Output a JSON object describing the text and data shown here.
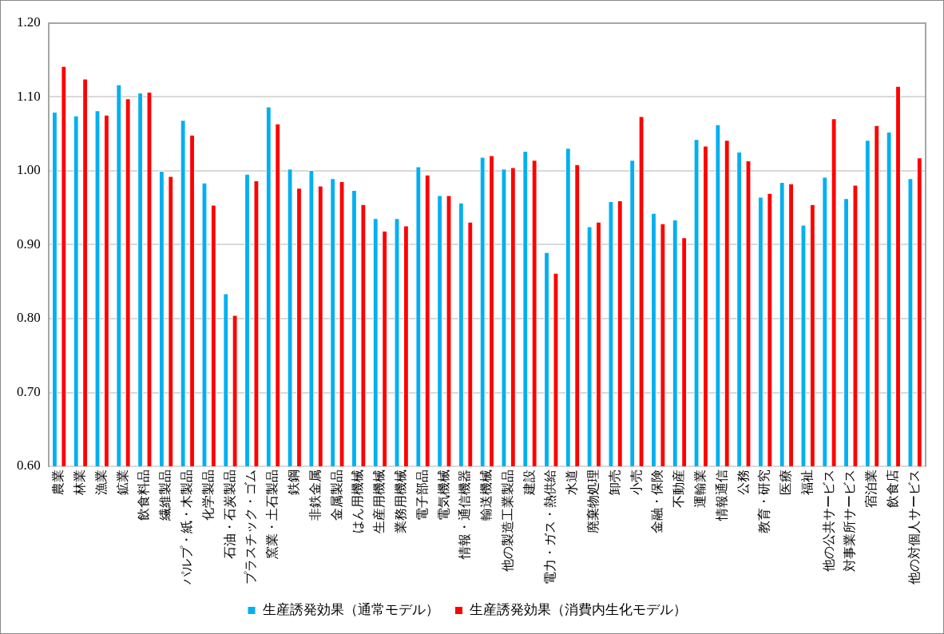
{
  "chart_data": {
    "type": "bar",
    "categories": [
      "農業",
      "林業",
      "漁業",
      "鉱業",
      "飲食料品",
      "繊維製品",
      "パルプ・紙・木製品",
      "化学製品",
      "石油・石炭製品",
      "プラスチック・ゴム",
      "窯業・土石製品",
      "鉄鋼",
      "非鉄金属",
      "金属製品",
      "はん用機械",
      "生産用機械",
      "業務用機械",
      "電子部品",
      "電気機械",
      "情報・通信機器",
      "輸送機械",
      "他の製造工業製品",
      "建設",
      "電力・ガス・熱供給",
      "水道",
      "廃棄物処理",
      "卸売",
      "小売",
      "金融・保険",
      "不動産",
      "運輸業",
      "情報通信",
      "公務",
      "教育・研究",
      "医療",
      "福祉",
      "他の公共サービス",
      "対事業所サービス",
      "宿泊業",
      "飲食店",
      "他の対個人サービス"
    ],
    "series": [
      {
        "name": "生産誘発効果（通常モデル）",
        "color": "#00b0f0",
        "values": [
          1.08,
          1.075,
          1.082,
          1.117,
          1.106,
          1.0,
          1.069,
          0.984,
          0.834,
          0.996,
          1.087,
          1.003,
          1.001,
          0.99,
          0.974,
          0.936,
          0.936,
          1.006,
          0.967,
          0.957,
          1.019,
          1.003,
          1.027,
          0.89,
          1.031,
          0.925,
          0.959,
          1.015,
          0.943,
          0.934,
          1.043,
          1.063,
          1.026,
          0.965,
          0.985,
          0.927,
          0.992,
          0.963,
          1.042,
          1.053,
          0.99
        ]
      },
      {
        "name": "生産誘発効果（消費内生化モデル）",
        "color": "#ff0000",
        "values": [
          1.142,
          1.125,
          1.076,
          1.098,
          1.107,
          0.993,
          1.049,
          0.954,
          0.805,
          0.987,
          1.064,
          0.977,
          0.98,
          0.986,
          0.955,
          0.919,
          0.926,
          0.995,
          0.967,
          0.931,
          1.021,
          1.005,
          1.015,
          0.862,
          1.009,
          0.931,
          0.96,
          1.074,
          0.929,
          0.91,
          1.034,
          1.042,
          1.014,
          0.97,
          0.983,
          0.955,
          1.071,
          0.981,
          1.062,
          1.115,
          1.018
        ]
      }
    ],
    "ylim": [
      0.6,
      1.2
    ],
    "yticks": [
      {
        "value": 0.6,
        "label": "0.60"
      },
      {
        "value": 0.7,
        "label": "0.70"
      },
      {
        "value": 0.8,
        "label": "0.80"
      },
      {
        "value": 0.9,
        "label": "0.90"
      },
      {
        "value": 1.0,
        "label": "1.00"
      },
      {
        "value": 1.1,
        "label": "1.10"
      },
      {
        "value": 1.2,
        "label": "1.20"
      }
    ],
    "grid": "y",
    "legend": "bottom"
  }
}
